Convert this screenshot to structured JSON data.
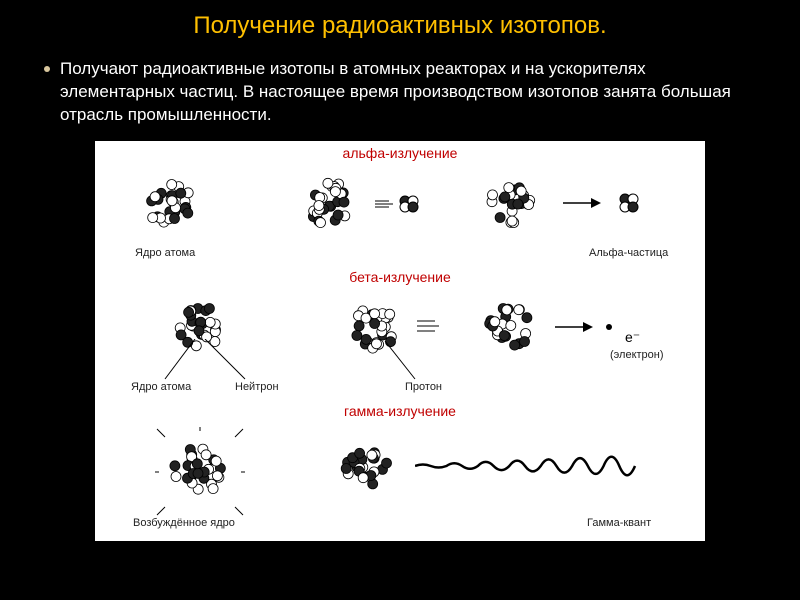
{
  "colors": {
    "slide_bg": "#000000",
    "title_color": "#ffc000",
    "body_text": "#ffffff",
    "panel_bg": "#ffffff",
    "section_title": "#c00000",
    "label_color": "#222222",
    "nucleon_dark": "#222222",
    "nucleon_light": "#ffffff",
    "nucleon_stroke": "#000000"
  },
  "title": "Получение радиоактивных изотопов.",
  "bullet": "Получают радиоактивные изотопы в атомных реакторах и на ускорителях элементарных частиц. В настоящее время производством изотопов занята большая отрасль промышленности.",
  "sections": {
    "alpha": {
      "title": "альфа-излучение",
      "left_label": "Ядро атома",
      "right_label": "Альфа-частица"
    },
    "beta": {
      "title": "бета-излучение",
      "left_label": "Ядро атома",
      "mid_label": "Нейтрон",
      "proton_label": "Протон",
      "electron_label": "(электрон)",
      "eminus": "e⁻"
    },
    "gamma": {
      "title": "гамма-излучение",
      "left_label": "Возбуждённое ядро",
      "right_label": "Гамма-квант"
    }
  },
  "diagram_style": {
    "nucleus_radius": 30,
    "nucleon_radius": 5,
    "alpha_particle_radius": 5,
    "dot_radius": 3,
    "wave_amplitude": 18,
    "wave_stroke": 2.5,
    "line_stroke": 1
  }
}
